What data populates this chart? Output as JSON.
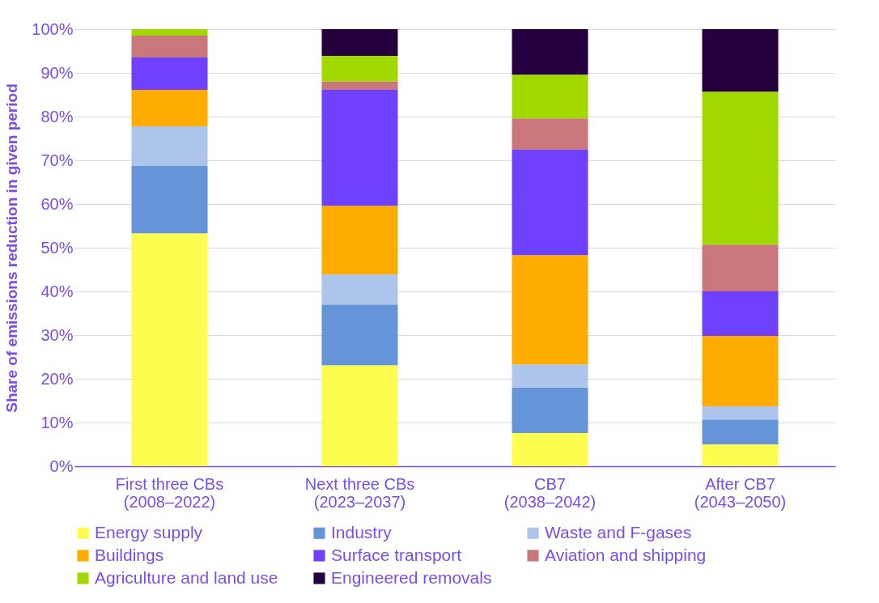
{
  "chart_data": {
    "type": "bar",
    "stacked": true,
    "ylabel": "Share of emissions reduction in given period",
    "categories": [
      "First three CBs\n(2008–2022)",
      "Next three CBs\n(2023–2037)",
      "CB7\n(2038–2042)",
      "After CB7\n(2043–2050)"
    ],
    "series": [
      {
        "name": "Energy supply",
        "color": "#fdfd4f",
        "values": [
          53.3,
          23.1,
          7.6,
          5.0
        ]
      },
      {
        "name": "Industry",
        "color": "#6694d8",
        "values": [
          15.4,
          13.9,
          10.4,
          5.7
        ]
      },
      {
        "name": "Waste and F-gases",
        "color": "#adc5ea",
        "values": [
          9.1,
          6.9,
          5.3,
          3.0
        ]
      },
      {
        "name": "Buildings",
        "color": "#ffac00",
        "values": [
          8.3,
          15.7,
          25.0,
          16.1
        ]
      },
      {
        "name": "Surface transport",
        "color": "#7040ff",
        "values": [
          7.4,
          26.5,
          24.1,
          10.2
        ]
      },
      {
        "name": "Aviation and shipping",
        "color": "#c9777b",
        "values": [
          5.0,
          1.9,
          7.2,
          10.7
        ]
      },
      {
        "name": "Agriculture and land use",
        "color": "#a0d800",
        "values": [
          1.5,
          5.9,
          10.0,
          35.0
        ]
      },
      {
        "name": "Engineered removals",
        "color": "#24003f",
        "values": [
          0,
          6.1,
          10.4,
          14.3
        ]
      }
    ],
    "ylim": [
      0,
      100
    ],
    "yticks": [
      {
        "value": 0,
        "label": "0%"
      },
      {
        "value": 10,
        "label": "10%"
      },
      {
        "value": 20,
        "label": "20%"
      },
      {
        "value": 30,
        "label": "30%"
      },
      {
        "value": 40,
        "label": "40%"
      },
      {
        "value": 50,
        "label": "50%"
      },
      {
        "value": 60,
        "label": "60%"
      },
      {
        "value": 70,
        "label": "70%"
      },
      {
        "value": 80,
        "label": "80%"
      },
      {
        "value": 90,
        "label": "90%"
      },
      {
        "value": 100,
        "label": "100%"
      }
    ],
    "grid": "y",
    "legend": "bottom"
  }
}
